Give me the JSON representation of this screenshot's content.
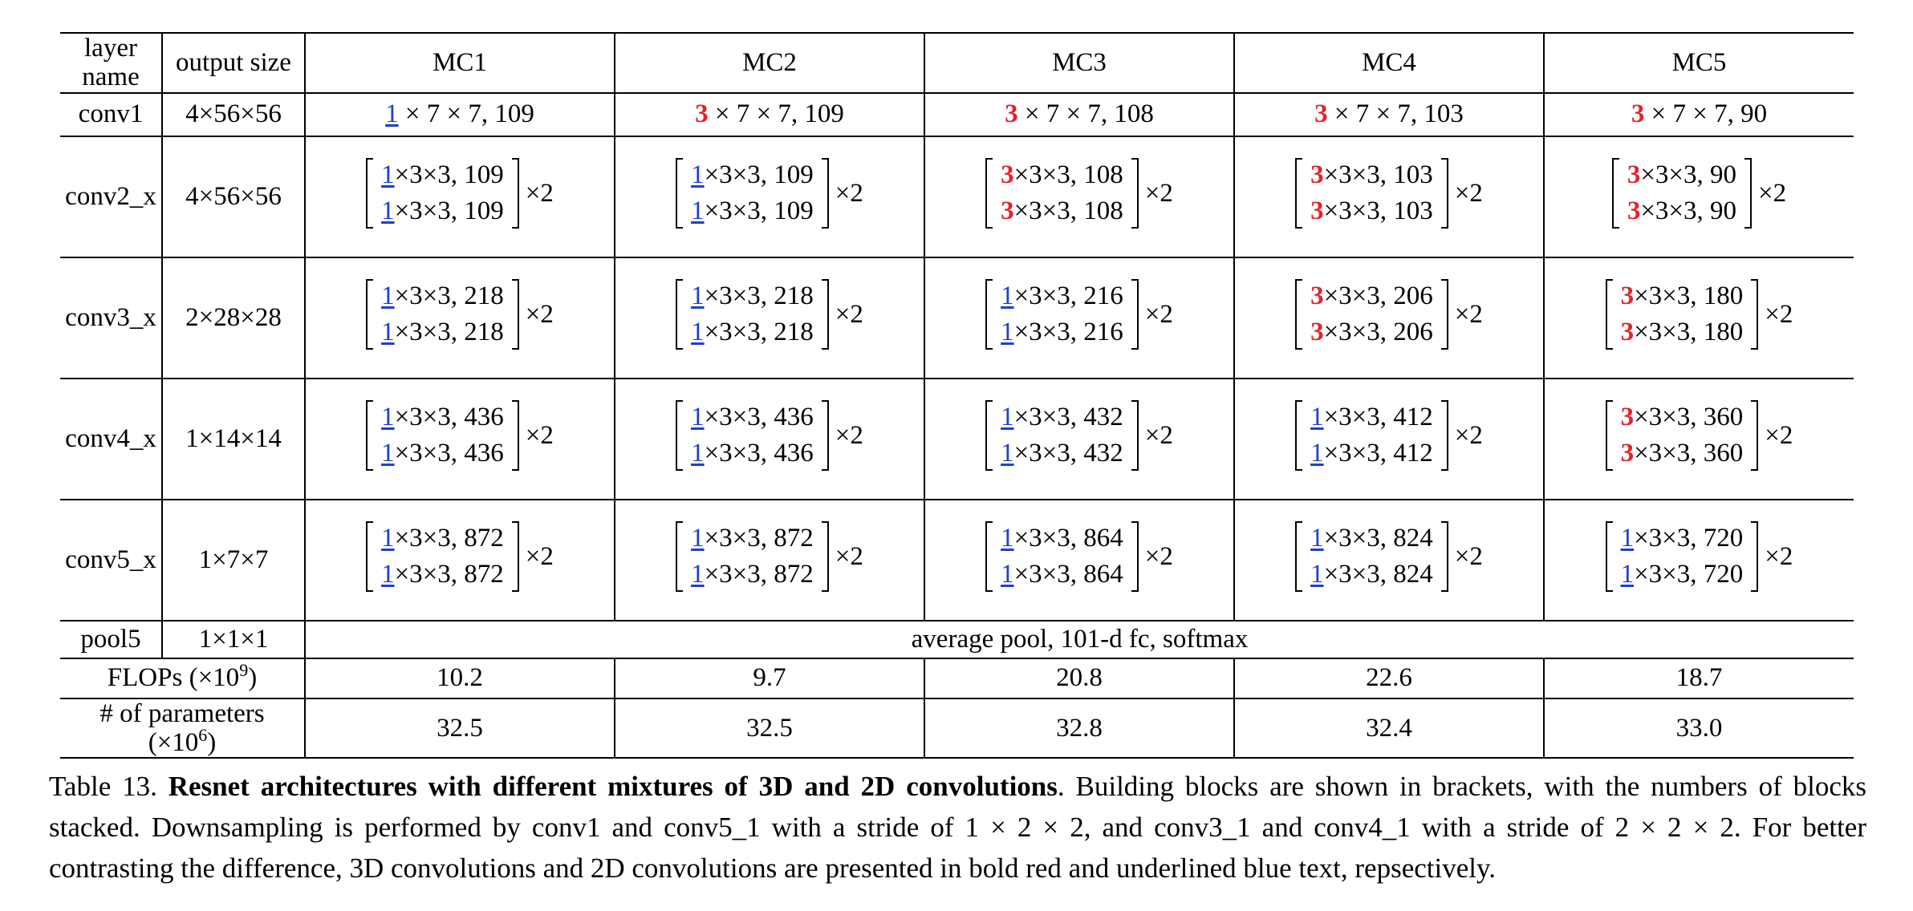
{
  "table": {
    "headers": [
      "layer name",
      "output size",
      "MC1",
      "MC2",
      "MC3",
      "MC4",
      "MC5"
    ],
    "conv1": {
      "name": "conv1",
      "size": "4×56×56",
      "cells": [
        {
          "k": "1",
          "rest": " × 7 × 7, 109"
        },
        {
          "k": "3",
          "rest": " × 7 × 7, 109"
        },
        {
          "k": "3",
          "rest": " × 7 × 7, 108"
        },
        {
          "k": "3",
          "rest": " × 7 × 7, 103"
        },
        {
          "k": "3",
          "rest": " × 7 × 7, 90"
        }
      ]
    },
    "block_rows": [
      {
        "name": "conv2_x",
        "size": "4×56×56",
        "cells": [
          {
            "k": "1",
            "rest": "×3×3, 109",
            "mult": "×2"
          },
          {
            "k": "1",
            "rest": "×3×3, 109",
            "mult": "×2"
          },
          {
            "k": "3",
            "rest": "×3×3, 108",
            "mult": "×2"
          },
          {
            "k": "3",
            "rest": "×3×3, 103",
            "mult": "×2"
          },
          {
            "k": "3",
            "rest": "×3×3, 90",
            "mult": "×2"
          }
        ]
      },
      {
        "name": "conv3_x",
        "size": "2×28×28",
        "cells": [
          {
            "k": "1",
            "rest": "×3×3, 218",
            "mult": "×2"
          },
          {
            "k": "1",
            "rest": "×3×3, 218",
            "mult": "×2"
          },
          {
            "k": "1",
            "rest": "×3×3, 216",
            "mult": "×2"
          },
          {
            "k": "3",
            "rest": "×3×3, 206",
            "mult": "×2"
          },
          {
            "k": "3",
            "rest": "×3×3, 180",
            "mult": "×2"
          }
        ]
      },
      {
        "name": "conv4_x",
        "size": "1×14×14",
        "cells": [
          {
            "k": "1",
            "rest": "×3×3, 436",
            "mult": "×2"
          },
          {
            "k": "1",
            "rest": "×3×3, 436",
            "mult": "×2"
          },
          {
            "k": "1",
            "rest": "×3×3, 432",
            "mult": "×2"
          },
          {
            "k": "1",
            "rest": "×3×3, 412",
            "mult": "×2"
          },
          {
            "k": "3",
            "rest": "×3×3, 360",
            "mult": "×2"
          }
        ]
      },
      {
        "name": "conv5_x",
        "size": "1×7×7",
        "cells": [
          {
            "k": "1",
            "rest": "×3×3, 872",
            "mult": "×2"
          },
          {
            "k": "1",
            "rest": "×3×3, 872",
            "mult": "×2"
          },
          {
            "k": "1",
            "rest": "×3×3, 864",
            "mult": "×2"
          },
          {
            "k": "1",
            "rest": "×3×3, 824",
            "mult": "×2"
          },
          {
            "k": "1",
            "rest": "×3×3, 720",
            "mult": "×2"
          }
        ]
      }
    ],
    "pool5": {
      "name": "pool5",
      "size": "1×1×1",
      "text": "average pool, 101-d fc, softmax"
    },
    "flops": {
      "label": "FLOPs (×10",
      "exp": "9",
      "close": ")",
      "values": [
        "10.2",
        "9.7",
        "20.8",
        "22.6",
        "18.7"
      ]
    },
    "params": {
      "label": "# of parameters (×10",
      "exp": "6",
      "close": ")",
      "values": [
        "32.5",
        "32.5",
        "32.8",
        "32.4",
        "33.0"
      ]
    }
  },
  "caption": {
    "prefix": "Table 13. ",
    "bold": "Resnet architectures with different mixtures of 3D and 2D convolutions",
    "body": ". Building blocks are shown in brackets, with the numbers of blocks stacked. Downsampling is performed by conv1 and conv5_1 with a stride of 1 × 2 × 2, and conv3_1 and conv4_1 with a stride of 2 × 2 × 2. For better contrasting the difference, 3D convolutions and 2D convolutions are presented in bold red and underlined blue text, repsectively."
  },
  "colors": {
    "conv3d": "#e0242b",
    "conv2d": "#1f3fd1"
  }
}
